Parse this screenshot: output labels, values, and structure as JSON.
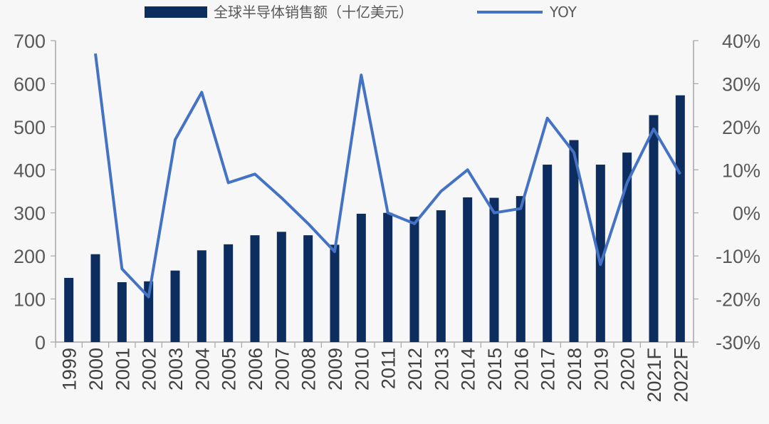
{
  "chart_data": {
    "type": "bar",
    "categories": [
      "1999",
      "2000",
      "2001",
      "2002",
      "2003",
      "2004",
      "2005",
      "2006",
      "2007",
      "2008",
      "2009",
      "2010",
      "2011",
      "2012",
      "2013",
      "2014",
      "2015",
      "2016",
      "2017",
      "2018",
      "2019",
      "2020",
      "2021F",
      "2022F"
    ],
    "series": [
      {
        "name": "全球半导体销售额（十亿美元）",
        "type": "bar",
        "axis": "left",
        "color": "#0d2d5e",
        "values": [
          149,
          204,
          139,
          141,
          166,
          213,
          227,
          248,
          256,
          248,
          226,
          298,
          300,
          291,
          306,
          336,
          335,
          339,
          412,
          469,
          412,
          440,
          527,
          573
        ]
      },
      {
        "name": "YOY",
        "type": "line",
        "axis": "right",
        "color": "#4472c4",
        "values": [
          null,
          37,
          -13,
          -19.5,
          17,
          28,
          7,
          9,
          3.5,
          -2.5,
          -9,
          32,
          0,
          -2.5,
          5,
          10,
          0,
          1,
          22,
          14,
          -12,
          7,
          19.5,
          9
        ]
      }
    ],
    "y_left": {
      "ylim": [
        0,
        700
      ],
      "ticks": [
        0,
        100,
        200,
        300,
        400,
        500,
        600,
        700
      ]
    },
    "y_right": {
      "ylim": [
        -30,
        40
      ],
      "ticks": [
        -30,
        -20,
        -10,
        0,
        10,
        20,
        30,
        40
      ],
      "tick_labels": [
        "-30%",
        "-20%",
        "-10%",
        "0%",
        "10%",
        "20%",
        "30%",
        "40%"
      ]
    },
    "legend": {
      "placement": "top-center"
    },
    "grid": false,
    "title": "",
    "xlabel": "",
    "ylabel": ""
  }
}
